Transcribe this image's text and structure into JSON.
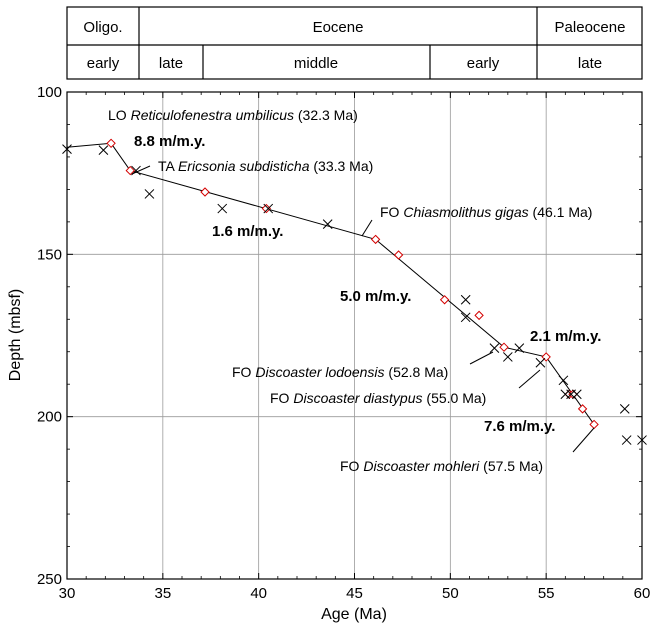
{
  "chart_data": {
    "type": "scatter",
    "xlabel": "Age (Ma)",
    "ylabel": "Depth (mbsf)",
    "xlim": [
      30,
      60
    ],
    "ylim": [
      100,
      250
    ],
    "y_inverted": true,
    "grid": true,
    "xticks": [
      "30",
      "35",
      "40",
      "45",
      "50",
      "55",
      "60"
    ],
    "yticks": [
      "100",
      "150",
      "200",
      "250"
    ],
    "stratigraphy": {
      "epochs": [
        {
          "label": "Oligo.",
          "from": 30,
          "to": 33.4
        },
        {
          "label": "Eocene",
          "from": 33.4,
          "to": 54.8
        },
        {
          "label": "Paleocene",
          "from": 54.8,
          "to": 60
        }
      ],
      "subdivisions": [
        {
          "label": "early",
          "from": 30,
          "to": 33.4
        },
        {
          "label": "late",
          "from": 33.4,
          "to": 37.0
        },
        {
          "label": "middle",
          "from": 37.0,
          "to": 49.0
        },
        {
          "label": "early",
          "from": 49.0,
          "to": 54.8
        },
        {
          "label": "late",
          "from": 54.8,
          "to": 60
        }
      ]
    },
    "series": [
      {
        "marker": "diamond",
        "color": "#d40000",
        "points": [
          [
            32.3,
            115.8
          ],
          [
            33.3,
            124.2
          ],
          [
            37.2,
            130.8
          ],
          [
            40.4,
            135.9
          ],
          [
            46.1,
            145.4
          ],
          [
            47.3,
            150.2
          ],
          [
            49.7,
            164.0
          ],
          [
            51.5,
            168.8
          ],
          [
            52.8,
            178.6
          ],
          [
            55.0,
            181.6
          ],
          [
            56.2,
            193.1
          ],
          [
            56.4,
            193.1
          ],
          [
            56.9,
            197.6
          ],
          [
            57.5,
            202.4
          ]
        ]
      },
      {
        "marker": "x",
        "color": "#000000",
        "points": [
          [
            30.0,
            117.6
          ],
          [
            31.9,
            117.9
          ],
          [
            33.6,
            124.2
          ],
          [
            34.3,
            131.4
          ],
          [
            38.1,
            135.9
          ],
          [
            40.5,
            135.9
          ],
          [
            43.6,
            140.7
          ],
          [
            50.8,
            164.0
          ],
          [
            50.8,
            169.4
          ],
          [
            52.3,
            178.9
          ],
          [
            53.0,
            181.6
          ],
          [
            53.6,
            178.9
          ],
          [
            54.7,
            183.4
          ],
          [
            55.9,
            188.8
          ],
          [
            56.0,
            193.1
          ],
          [
            56.3,
            193.1
          ],
          [
            56.6,
            193.1
          ],
          [
            59.1,
            197.6
          ],
          [
            59.2,
            207.2
          ],
          [
            60.0,
            207.2
          ]
        ]
      }
    ],
    "age_depth_line": [
      [
        30.0,
        117.0
      ],
      [
        32.3,
        115.8
      ],
      [
        33.3,
        124.2
      ],
      [
        46.1,
        145.4
      ],
      [
        52.8,
        178.6
      ],
      [
        55.0,
        181.6
      ],
      [
        57.5,
        202.4
      ]
    ],
    "datum_labels": [
      {
        "prefix": "LO ",
        "taxon": "Reticulofenestra umbilicus",
        "age": " (32.3 Ma)"
      },
      {
        "prefix": "TA ",
        "taxon": "Ericsonia subdisticha",
        "age": " (33.3 Ma)"
      },
      {
        "prefix": "FO ",
        "taxon": "Chiasmolithus gigas",
        "age": " (46.1 Ma)"
      },
      {
        "prefix": "FO ",
        "taxon": "Discoaster lodoensis",
        "age": " (52.8 Ma)"
      },
      {
        "prefix": "FO ",
        "taxon": "Discoaster diastypus",
        "age": " (55.0 Ma)"
      },
      {
        "prefix": "FO ",
        "taxon": "Discoaster mohleri",
        "age": " (57.5 Ma)"
      }
    ],
    "rate_labels": [
      "8.8 m/m.y.",
      "1.6 m/m.y.",
      "5.0 m/m.y.",
      "2.1 m/m.y.",
      "7.6 m/m.y."
    ]
  }
}
